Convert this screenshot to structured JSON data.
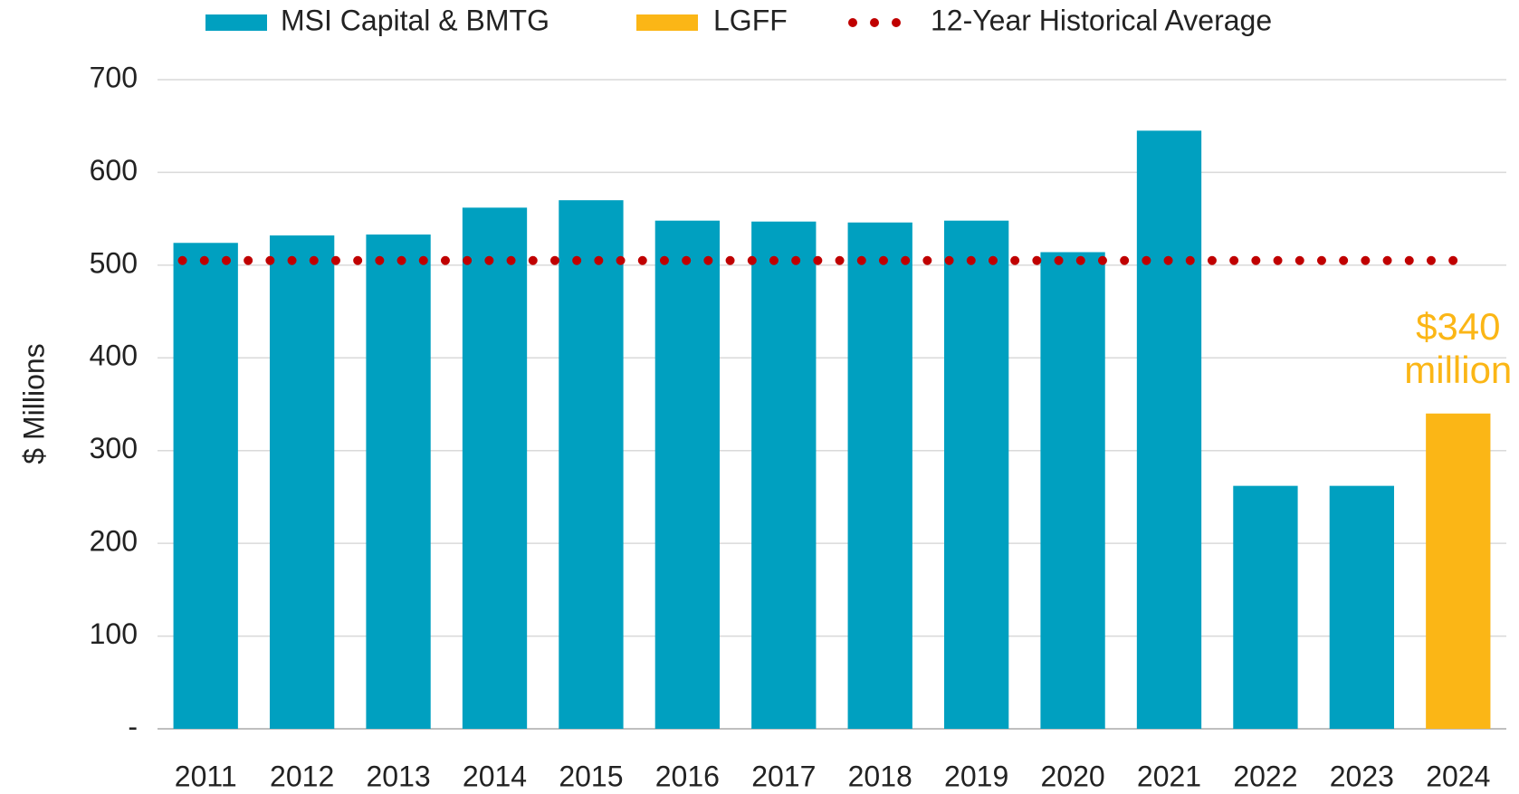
{
  "chart_data": {
    "type": "bar",
    "categories": [
      "2011",
      "2012",
      "2013",
      "2014",
      "2015",
      "2016",
      "2017",
      "2018",
      "2019",
      "2020",
      "2021",
      "2022",
      "2023",
      "2024"
    ],
    "series": [
      {
        "name": "MSI Capital & BMTG",
        "color": "#00a0c0",
        "values": [
          524,
          532,
          533,
          562,
          570,
          548,
          547,
          546,
          548,
          514,
          645,
          262,
          262,
          null
        ]
      },
      {
        "name": "LGFF",
        "color": "#fbb616",
        "values": [
          null,
          null,
          null,
          null,
          null,
          null,
          null,
          null,
          null,
          null,
          null,
          null,
          null,
          340
        ],
        "value_labels": [
          null,
          null,
          null,
          null,
          null,
          null,
          null,
          null,
          null,
          null,
          null,
          null,
          null,
          "$340 million"
        ]
      }
    ],
    "reference_line": {
      "name": "12-Year Historical Average",
      "value": 505,
      "color": "#c00000"
    },
    "y_label": "$ Millions",
    "ylim": [
      0,
      700
    ],
    "yticks": [
      {
        "value": 0,
        "label": "-"
      },
      100,
      200,
      300,
      400,
      500,
      600,
      700
    ],
    "grid": true
  }
}
